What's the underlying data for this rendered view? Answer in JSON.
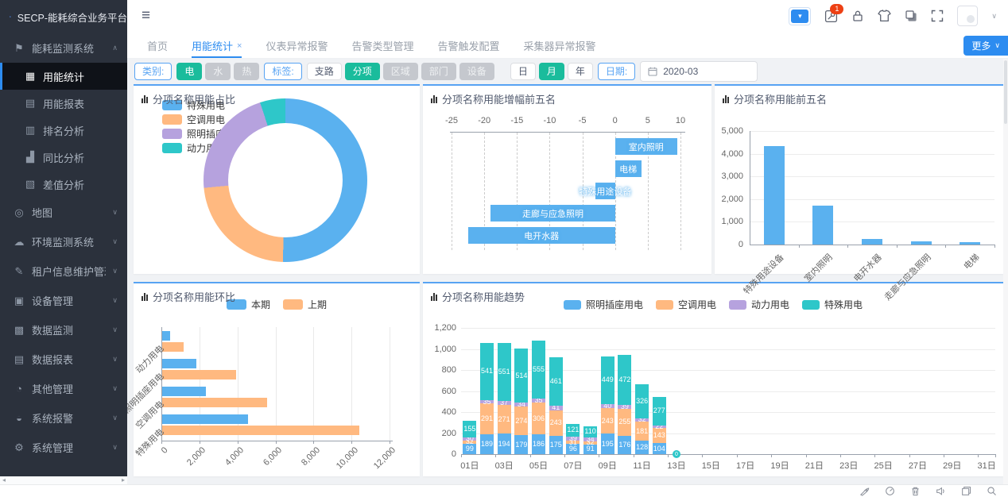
{
  "app": {
    "logo_title": "SECP-能耗综合业务平台"
  },
  "topbar": {
    "hamburger_glyph": "≡",
    "badge_count": "1",
    "icon_names": [
      "quick-nav-dropdown",
      "bug-log-icon",
      "lock-icon",
      "theme-icon",
      "copy-icon",
      "fullscreen-icon",
      "avatar",
      "user-chevron"
    ]
  },
  "tabs": {
    "items": [
      {
        "label": "首页",
        "active": false,
        "closable": false
      },
      {
        "label": "用能统计",
        "active": true,
        "closable": true
      },
      {
        "label": "仪表异常报警",
        "active": false,
        "closable": false
      },
      {
        "label": "告警类型管理",
        "active": false,
        "closable": false
      },
      {
        "label": "告警触发配置",
        "active": false,
        "closable": false
      },
      {
        "label": "采集器异常报警",
        "active": false,
        "closable": false
      }
    ],
    "close_glyph": "×",
    "more_label": "更多",
    "more_chevron": "∨"
  },
  "filters": {
    "category_label": "类别:",
    "category_options": [
      {
        "label": "电",
        "state": "active"
      },
      {
        "label": "水",
        "state": "disabled"
      },
      {
        "label": "热",
        "state": "disabled"
      }
    ],
    "tag_label": "标签:",
    "tag_options": [
      {
        "label": "支路",
        "state": "normal"
      },
      {
        "label": "分项",
        "state": "active"
      },
      {
        "label": "区域",
        "state": "disabled"
      },
      {
        "label": "部门",
        "state": "disabled"
      },
      {
        "label": "设备",
        "state": "disabled"
      }
    ],
    "period_options": [
      {
        "label": "日",
        "state": "normal"
      },
      {
        "label": "月",
        "state": "active"
      },
      {
        "label": "年",
        "state": "normal"
      }
    ],
    "date_label": "日期:",
    "date_value": "2020-03"
  },
  "sidebar": {
    "chevron_up": "∧",
    "chevron_down": "∨",
    "scroll_left": "◂",
    "scroll_right": "▸",
    "items": [
      {
        "label": "能耗监测系统",
        "glyph": "⚑",
        "icon": "flag-icon",
        "expanded": true,
        "children": [
          {
            "label": "用能统计",
            "glyph": "▦",
            "icon": "grid-icon",
            "active": true
          },
          {
            "label": "用能报表",
            "glyph": "▤",
            "icon": "report-icon",
            "active": false
          },
          {
            "label": "排名分析",
            "glyph": "▥",
            "icon": "ranking-icon",
            "active": false
          },
          {
            "label": "同比分析",
            "glyph": "▟",
            "icon": "chart-icon",
            "active": false
          },
          {
            "label": "差值分析",
            "glyph": "▧",
            "icon": "diff-icon",
            "active": false
          }
        ]
      },
      {
        "label": "地图",
        "glyph": "◎",
        "icon": "map-pin-icon"
      },
      {
        "label": "环境监测系统",
        "glyph": "☁",
        "icon": "cloud-icon"
      },
      {
        "label": "租户信息维护管理",
        "glyph": "✎",
        "icon": "edit-icon"
      },
      {
        "label": "设备管理",
        "glyph": "▣",
        "icon": "device-icon"
      },
      {
        "label": "数据监测",
        "glyph": "▩",
        "icon": "monitor-icon"
      },
      {
        "label": "数据报表",
        "glyph": "▤",
        "icon": "report2-icon"
      },
      {
        "label": "其他管理",
        "glyph": "◔",
        "icon": "other-icon"
      },
      {
        "label": "系统报警",
        "glyph": "◒",
        "icon": "alarm-icon"
      },
      {
        "label": "系统管理",
        "glyph": "⚙",
        "icon": "gear-icon"
      }
    ]
  },
  "statusbar": {
    "icon_names": [
      "rocket-icon",
      "gauge-icon",
      "trash-icon",
      "volume-icon",
      "window-icon",
      "search-icon"
    ]
  },
  "colors": {
    "accent_blue": "#2d8cf0",
    "active_green": "#1abc9c",
    "card_top_border": "#57a3f3",
    "series_blue": "#5ab1ef",
    "series_orange": "#ffb980",
    "series_purple": "#b6a2de",
    "series_teal": "#2ec7c9"
  },
  "chart_data": [
    {
      "id": "pie",
      "type": "pie",
      "title": "分项名称用能占比",
      "legend_position": "top-left",
      "series": [
        {
          "name": "特殊用电",
          "color": "#5ab1ef",
          "value_pct": 50.5
        },
        {
          "name": "空调用电",
          "color": "#ffb980",
          "value_pct": 23
        },
        {
          "name": "照明插座用电",
          "color": "#b6a2de",
          "value_pct": 21.5
        },
        {
          "name": "动力用电",
          "color": "#2ec7c9",
          "value_pct": 5
        }
      ]
    },
    {
      "id": "growth",
      "type": "bar",
      "orientation": "horizontal",
      "title": "分项名称用能增幅前五名",
      "categories": [
        "室内照明",
        "电梯",
        "特殊用途设备",
        "走廊与应急照明",
        "电开水器"
      ],
      "values": [
        9.5,
        4,
        -3,
        -19,
        -22.5
      ],
      "bar_color": "#5ab1ef",
      "xlim": [
        -25,
        10
      ],
      "xticks": [
        "-25",
        "-20",
        "-15",
        "-10",
        "-5",
        "0",
        "5",
        "10"
      ],
      "xtick_values": [
        -25,
        -20,
        -15,
        -10,
        -5,
        0,
        5,
        10
      ],
      "axis_position": "top",
      "grid": "dashed"
    },
    {
      "id": "top5",
      "type": "bar",
      "title": "分项名称用能前五名",
      "categories": [
        "特殊用途设备",
        "室内照明",
        "电开水器",
        "走廊与应急照明",
        "电梯"
      ],
      "values": [
        4350,
        1700,
        260,
        130,
        110
      ],
      "bar_color": "#5ab1ef",
      "ylim": [
        0,
        5000
      ],
      "yticks": [
        "0",
        "1,000",
        "2,000",
        "3,000",
        "4,000",
        "5,000"
      ],
      "ytick_values": [
        0,
        1000,
        2000,
        3000,
        4000,
        5000
      ]
    },
    {
      "id": "huanbi",
      "type": "bar",
      "orientation": "horizontal",
      "title": "分项名称用能环比",
      "legend_position": "top",
      "categories": [
        "动力用电",
        "照明插座用电",
        "空调用电",
        "特殊用电"
      ],
      "series": [
        {
          "name": "本期",
          "color": "#5ab1ef",
          "values": [
            420,
            1800,
            2300,
            4500
          ]
        },
        {
          "name": "上期",
          "color": "#ffb980",
          "values": [
            1130,
            3890,
            5520,
            10350
          ]
        }
      ],
      "xlim": [
        0,
        12000
      ],
      "xticks": [
        "0",
        "2,000",
        "4,000",
        "6,000",
        "8,000",
        "10,000",
        "12,000"
      ],
      "xtick_values": [
        0,
        2000,
        4000,
        6000,
        8000,
        10000,
        12000
      ]
    },
    {
      "id": "trend",
      "type": "bar-stacked",
      "title": "分项名称用能趋势",
      "legend_position": "top",
      "x_labels": [
        "01日",
        "03日",
        "05日",
        "07日",
        "09日",
        "11日",
        "13日",
        "15日",
        "17日",
        "19日",
        "21日",
        "23日",
        "25日",
        "27日",
        "29日",
        "31日"
      ],
      "num_slots": 31,
      "series": [
        {
          "name": "照明插座用电",
          "color": "#5ab1ef",
          "values": [
            99,
            189,
            194,
            179,
            186,
            175,
            96,
            91,
            195,
            176,
            128,
            104,
            0
          ]
        },
        {
          "name": "空调用电",
          "color": "#ffb980",
          "values": [
            32,
            291,
            271,
            274,
            306,
            243,
            31,
            32,
            243,
            255,
            181,
            143,
            0
          ]
        },
        {
          "name": "动力用电",
          "color": "#b6a2de",
          "values": [
            30,
            35,
            37,
            34,
            35,
            41,
            39,
            34,
            40,
            39,
            32,
            22,
            0
          ]
        },
        {
          "name": "特殊用电",
          "color": "#2ec7c9",
          "values": [
            155,
            541,
            551,
            514,
            555,
            461,
            121,
            110,
            449,
            472,
            326,
            277,
            0
          ]
        }
      ],
      "zero_marker_label": "0",
      "ylim": [
        0,
        1200
      ],
      "yticks": [
        "0",
        "200",
        "400",
        "600",
        "800",
        "1,000",
        "1,200"
      ],
      "ytick_values": [
        0,
        200,
        400,
        600,
        800,
        1000,
        1200
      ]
    }
  ]
}
